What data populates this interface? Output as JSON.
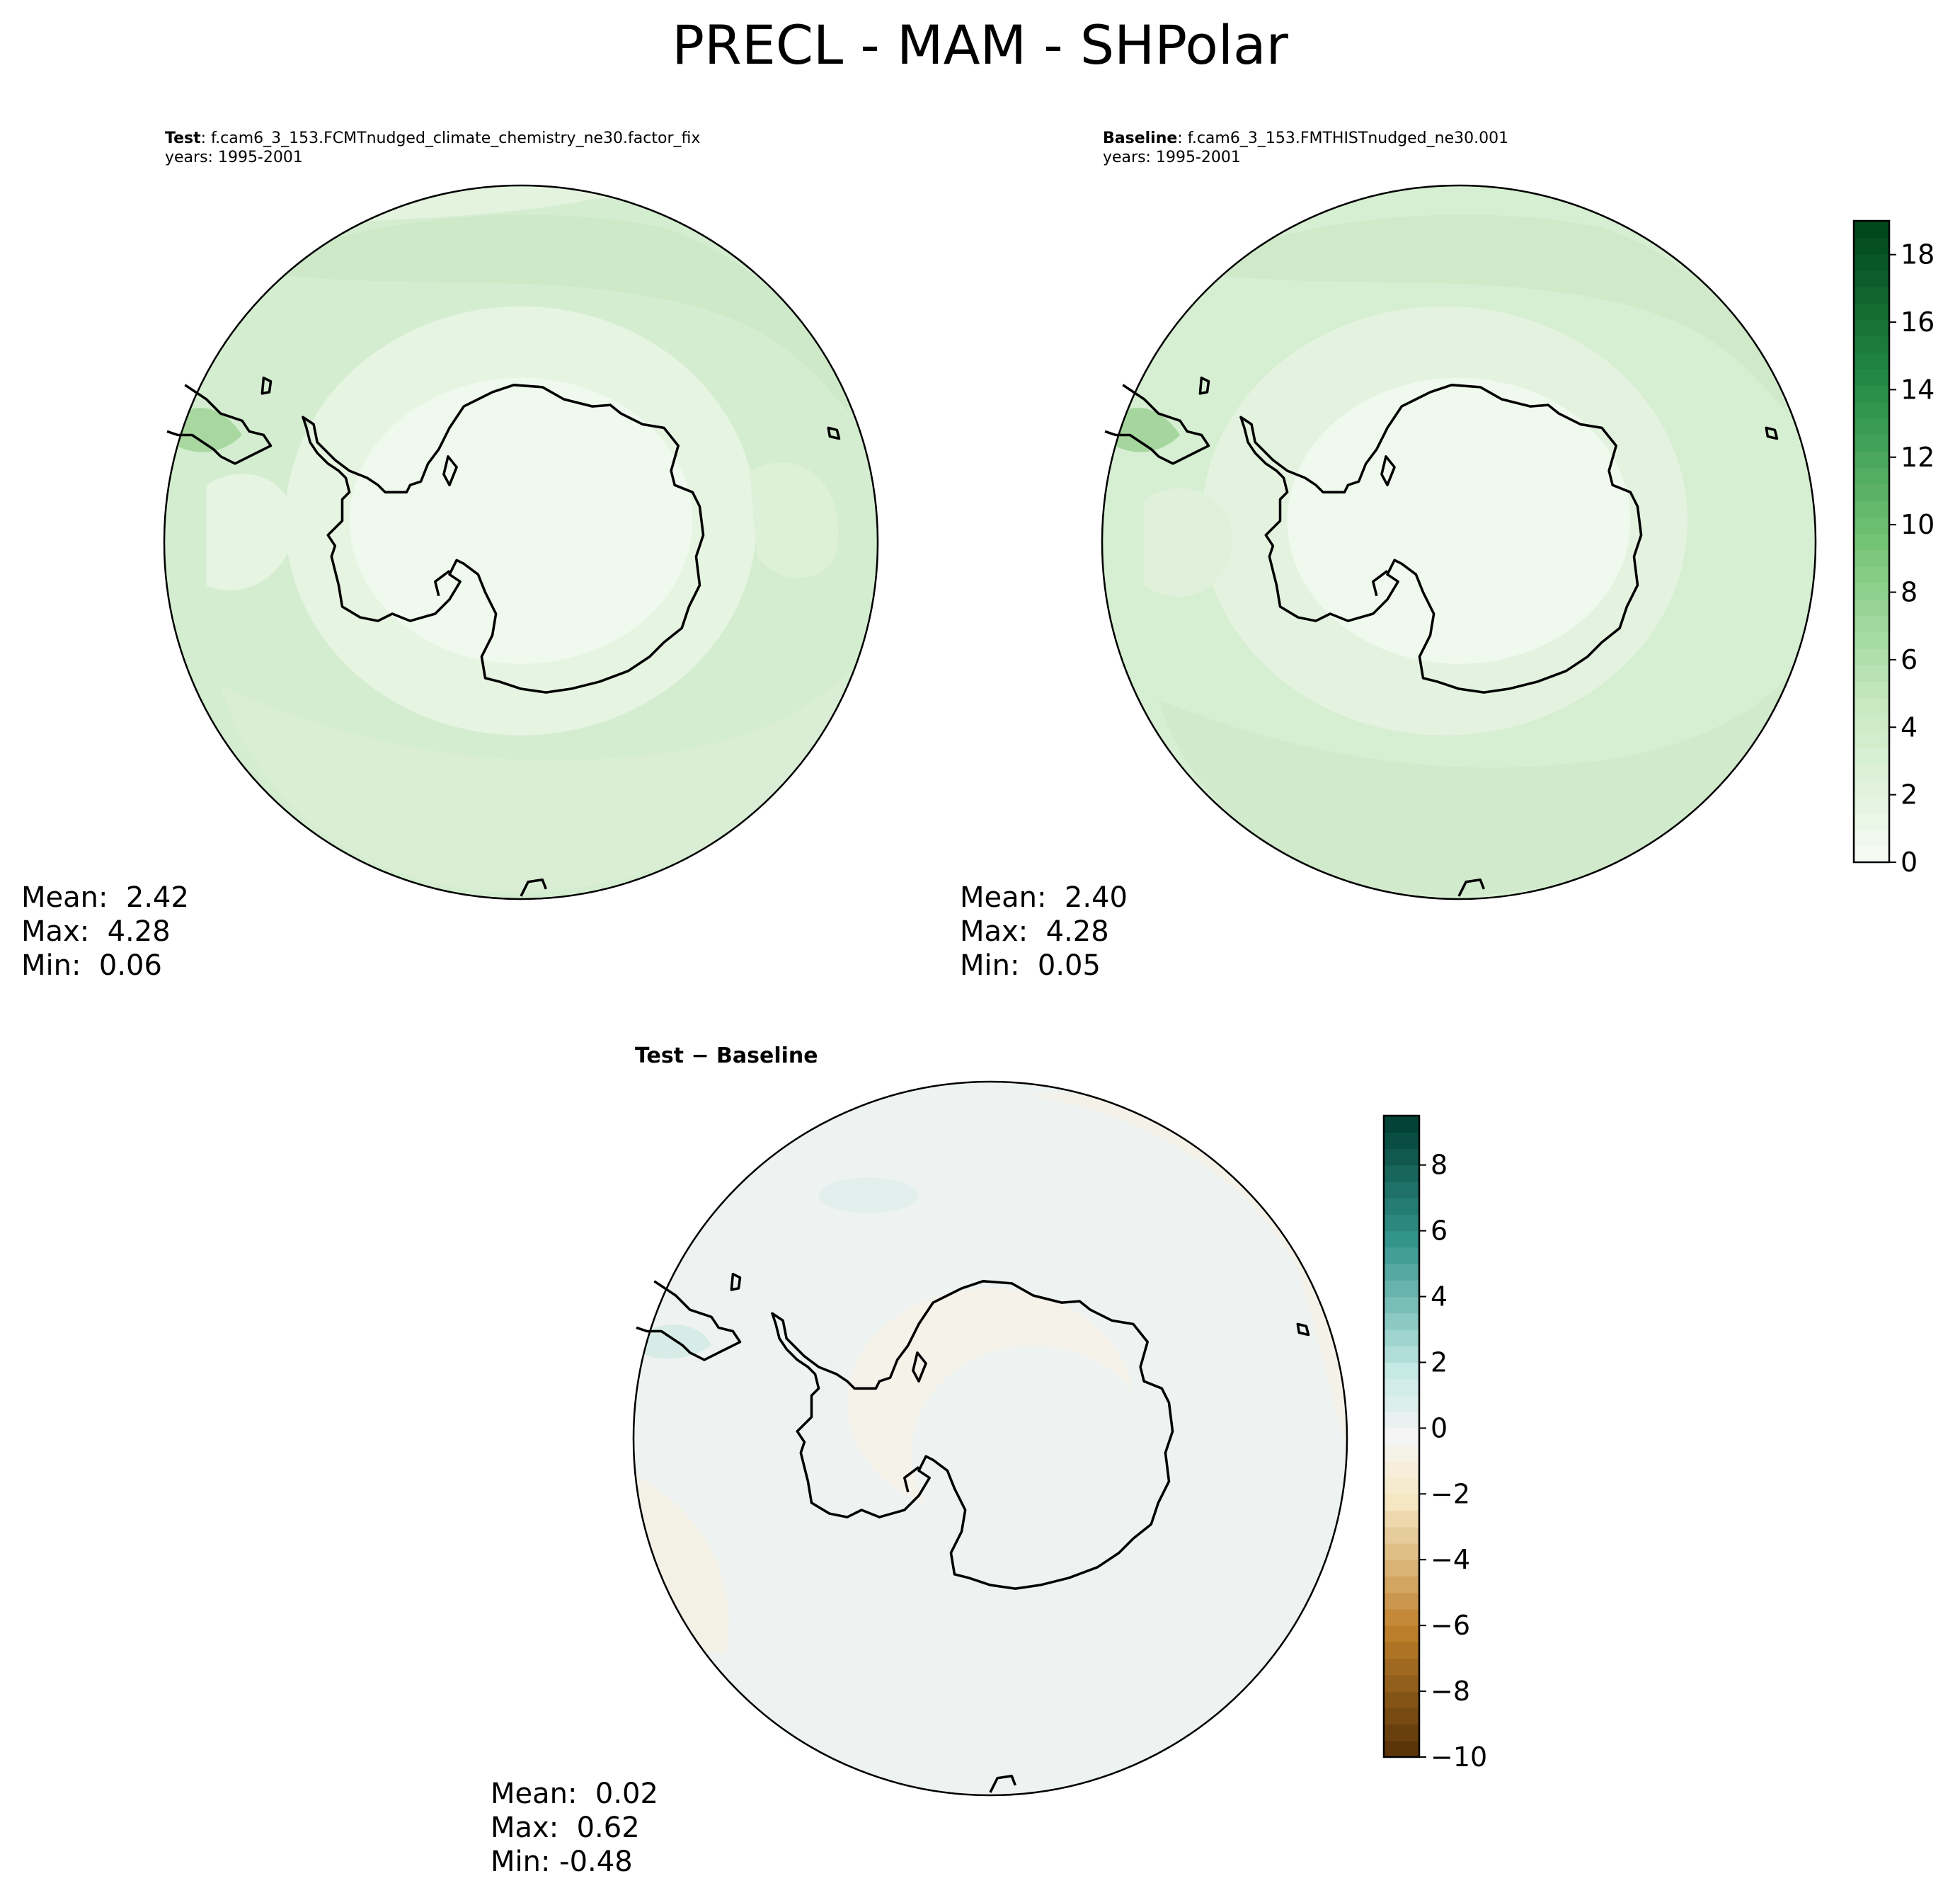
{
  "figure": {
    "title": "PRECL - MAM - SHPolar"
  },
  "panels": {
    "test": {
      "label_bold": "Test",
      "label_rest": ": f.cam6_3_153.FCMTnudged_climate_chemistry_ne30.factor_fix",
      "years": "years: 1995-2001",
      "mean": "Mean:  2.42",
      "max": "Max:  4.28",
      "min": "Min:  0.06"
    },
    "baseline": {
      "label_bold": "Baseline",
      "label_rest": ": f.cam6_3_153.FMTHISTnudged_ne30.001",
      "years": "years: 1995-2001",
      "mean": "Mean:  2.40",
      "max": "Max:  4.28",
      "min": "Min:  0.05"
    },
    "difference": {
      "title": "Test − Baseline",
      "mean": "Mean:  0.02",
      "max": "Max:  0.62",
      "min": "Min: -0.48"
    }
  },
  "colorbars": {
    "precip": {
      "colormap": "Greens",
      "range": [
        0,
        19
      ],
      "levels": 19,
      "ticks": [
        "0",
        "2",
        "4",
        "6",
        "8",
        "10",
        "12",
        "14",
        "16",
        "18"
      ],
      "tick_values": [
        0,
        2,
        4,
        6,
        8,
        10,
        12,
        14,
        16,
        18
      ]
    },
    "diff": {
      "colormap": "BrBG",
      "range": [
        -10,
        9.5
      ],
      "ticks": [
        "−10",
        "−8",
        "−6",
        "−4",
        "−2",
        "0",
        "2",
        "4",
        "6",
        "8"
      ],
      "tick_values": [
        -10,
        -8,
        -6,
        -4,
        -2,
        0,
        2,
        4,
        6,
        8
      ]
    }
  },
  "map": {
    "projection": "South Polar Stereographic",
    "features": [
      "Antarctica coastline",
      "South America tip",
      "New Zealand",
      "Southern Ocean precipitation band"
    ]
  }
}
